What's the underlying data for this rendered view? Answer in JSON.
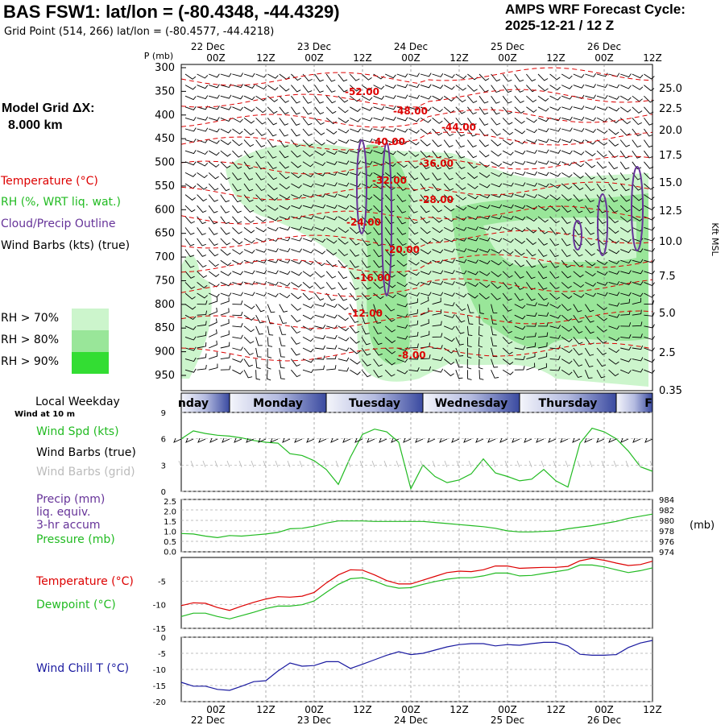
{
  "header": {
    "title": "BAS FSW1:  lat/lon = (-80.4348, -44.4329)",
    "subtitle": "Grid Point (514, 266) lat/lon = (-80.4577, -44.4218)",
    "cycle_line1": "AMPS WRF Forecast Cycle:",
    "cycle_line2": "2025-12-21 / 12  Z"
  },
  "left_panel": {
    "grid_dx_label": "Model Grid ΔX:",
    "grid_dx_value": "8.000 km",
    "temperature_label": "Temperature (°C)",
    "rh_label": "RH (%, WRT liq. wat.)",
    "cloud_label": "Cloud/Precip Outline",
    "wind_label": "Wind Barbs (kts) (true)",
    "rh_legend": [
      "RH > 70%",
      "RH > 80%",
      "RH > 90%"
    ],
    "local_weekday": "Local Weekday",
    "wind_at": "Wind at 10 m",
    "wind_spd_label": "Wind Spd (kts)",
    "wind_barbs_true": "Wind Barbs (true)",
    "wind_barbs_grid": "Wind Barbs (grid)",
    "precip_label": "Precip (mm)",
    "precip_sub1": "liq. equiv.",
    "precip_sub2": "3-hr accum",
    "pressure_label": "Pressure (mb)",
    "temp2_label": "Temperature (°C)",
    "dew_label": "Dewpoint (°C)",
    "chill_label": "Wind Chill T (°C)"
  },
  "colors": {
    "temperature": "#dd0000",
    "rh70": "#ccf5cc",
    "rh80": "#99e699",
    "rh90": "#33dd33",
    "cloud": "#663399",
    "pressure": "#22bb22",
    "wind_chill": "#1a1aa0",
    "weekday_band": "#3a4aa0"
  },
  "chart_data": [
    {
      "type": "area",
      "name": "time-height cross section",
      "time_top_labels": [
        "22 Dec",
        "23 Dec",
        "24 Dec",
        "25 Dec",
        "26 Dec"
      ],
      "hour_labels": [
        "00Z",
        "12Z",
        "00Z",
        "12Z",
        "00Z",
        "12Z",
        "00Z",
        "12Z",
        "00Z",
        "12Z"
      ],
      "pressure_axis_label": "P (mb)",
      "pressure_levels": [
        300,
        350,
        400,
        450,
        500,
        550,
        600,
        650,
        700,
        750,
        800,
        850,
        900,
        950
      ],
      "height_axis_label": "Kft MSL",
      "height_ticks": [
        "25.0",
        "22.5",
        "20.0",
        "17.5",
        "15.0",
        "12.5",
        "10.0",
        "7.5",
        "5.0",
        "2.5",
        "0.35"
      ],
      "temperature_contour_labels": [
        "-52.00",
        "-48.00",
        "-44.00",
        "-40.00",
        "-36.00",
        "-32.00",
        "-28.00",
        "-24.00",
        "-20.00",
        "-16.00",
        "-12.00",
        "-8.00"
      ]
    },
    {
      "type": "line",
      "name": "10 m wind speed",
      "weekdays": [
        "nday",
        "Monday",
        "Tuesday",
        "Wednesday",
        "Thursday",
        "F"
      ],
      "y_ticks": [
        "9",
        "6",
        "3",
        "0"
      ],
      "ylim": [
        0,
        9
      ],
      "x_hours": [
        0,
        3,
        6,
        9,
        12,
        15,
        18,
        21,
        24,
        27,
        30,
        33,
        36,
        39,
        42,
        45,
        48,
        51,
        54,
        57,
        60,
        63,
        66,
        69,
        72,
        75,
        78,
        81,
        84,
        87,
        90,
        93,
        96,
        99,
        102,
        105,
        108,
        111,
        114,
        117
      ],
      "values": [
        6.0,
        6.9,
        6.6,
        6.4,
        6.3,
        6.1,
        5.8,
        5.6,
        5.5,
        4.3,
        4.1,
        3.5,
        2.5,
        0.8,
        3.9,
        6.5,
        7.1,
        6.8,
        5.6,
        0.3,
        3.0,
        1.7,
        1.0,
        1.3,
        2.0,
        3.7,
        2.1,
        1.7,
        1.2,
        1.4,
        2.5,
        1.2,
        0.5,
        5.5,
        7.2,
        6.8,
        6.0,
        4.6,
        2.8,
        2.3
      ]
    },
    {
      "type": "line",
      "name": "sea-level pressure",
      "precip_ticks": [
        "2.5",
        "2.0",
        "1.5",
        "1.0",
        "0.5",
        "0.0"
      ],
      "pressure_ticks": [
        "984",
        "982",
        "980",
        "978",
        "976",
        "974"
      ],
      "pressure_unit": "(mb)",
      "ylim": [
        974,
        984
      ],
      "values": [
        977.5,
        977.4,
        977.0,
        976.7,
        977.1,
        977.0,
        977.2,
        977.4,
        977.7,
        978.4,
        978.5,
        978.9,
        979.5,
        979.9,
        979.9,
        979.9,
        979.8,
        979.8,
        979.8,
        979.8,
        979.8,
        979.6,
        979.4,
        979.2,
        979.0,
        978.8,
        978.5,
        978.0,
        977.8,
        977.8,
        977.9,
        978.0,
        978.4,
        978.7,
        979.0,
        979.4,
        979.8,
        980.4,
        980.8,
        981.2
      ]
    },
    {
      "type": "line",
      "name": "temperature and dewpoint",
      "y_ticks": [
        "-5",
        "-10",
        "-15"
      ],
      "ylim": [
        -15,
        0
      ],
      "series": [
        {
          "name": "Temperature",
          "values": [
            -10.2,
            -9.6,
            -9.7,
            -10.6,
            -11.2,
            -10.3,
            -9.5,
            -8.8,
            -8.3,
            -8.4,
            -8.2,
            -7.4,
            -5.4,
            -3.7,
            -2.6,
            -2.7,
            -3.7,
            -4.9,
            -5.6,
            -5.6,
            -4.8,
            -4.0,
            -3.2,
            -2.9,
            -3.0,
            -2.6,
            -1.8,
            -1.8,
            -2.3,
            -2.2,
            -2.1,
            -2.1,
            -1.9,
            -0.7,
            -0.2,
            -0.6,
            -1.2,
            -1.7,
            -1.5,
            -0.8
          ]
        },
        {
          "name": "Dewpoint",
          "values": [
            -12.5,
            -11.8,
            -11.8,
            -12.5,
            -13.0,
            -12.3,
            -11.6,
            -10.8,
            -10.3,
            -10.3,
            -10.0,
            -9.2,
            -7.4,
            -5.7,
            -4.5,
            -4.3,
            -5.0,
            -6.0,
            -6.5,
            -6.4,
            -5.7,
            -5.1,
            -4.6,
            -4.3,
            -4.3,
            -3.9,
            -3.3,
            -3.3,
            -3.9,
            -3.8,
            -3.4,
            -3.0,
            -2.6,
            -1.6,
            -1.6,
            -2.0,
            -2.6,
            -3.2,
            -2.8,
            -2.2
          ]
        }
      ]
    },
    {
      "type": "line",
      "name": "wind chill",
      "y_ticks": [
        "0",
        "-5",
        "-10",
        "-15",
        "-20"
      ],
      "ylim": [
        -20,
        0
      ],
      "values": [
        -14.0,
        -15.2,
        -15.2,
        -16.2,
        -16.5,
        -15.2,
        -13.8,
        -13.5,
        -10.5,
        -8.0,
        -9.0,
        -8.8,
        -7.6,
        -7.6,
        -9.7,
        -8.4,
        -7.0,
        -5.6,
        -4.5,
        -5.4,
        -5.0,
        -4.0,
        -3.0,
        -2.3,
        -2.0,
        -2.0,
        -2.7,
        -2.3,
        -2.5,
        -2.0,
        -1.6,
        -1.6,
        -2.7,
        -5.3,
        -5.6,
        -5.6,
        -5.4,
        -3.2,
        -1.8,
        -1.0
      ]
    }
  ],
  "bottom_axis": {
    "hour_labels": [
      "00Z",
      "12Z",
      "00Z",
      "12Z",
      "00Z",
      "12Z",
      "00Z",
      "12Z",
      "00Z",
      "12Z"
    ],
    "date_labels": [
      "22 Dec",
      "23 Dec",
      "24 Dec",
      "25 Dec",
      "26 Dec"
    ]
  }
}
